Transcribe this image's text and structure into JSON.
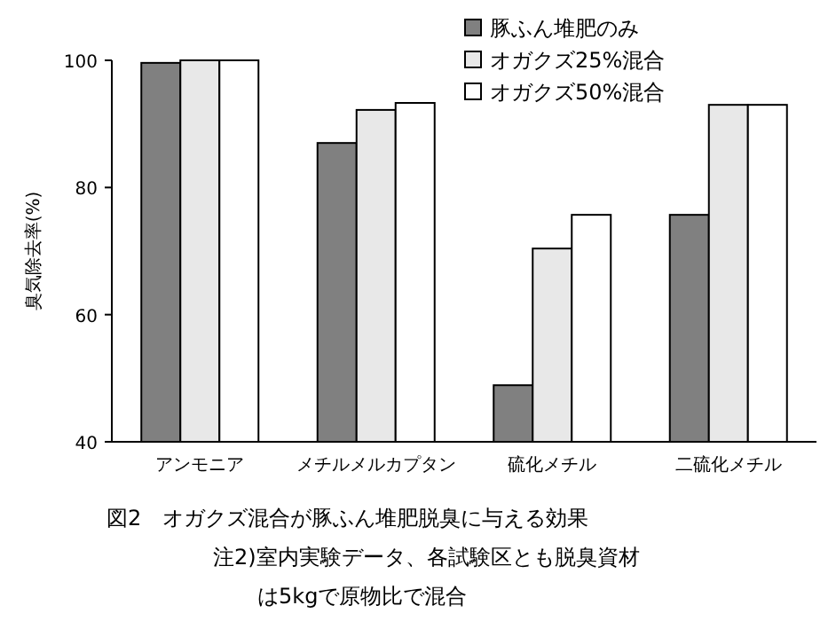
{
  "chart_data": {
    "type": "bar",
    "ylabel": "臭気除去率(%)",
    "title": "図2　オガクズ混合が豚ふん堆肥脱臭に与える効果",
    "annotations": [
      "注2)室内実験データ、各試験区とも脱臭資材",
      "は5kgで原物比で混合"
    ],
    "categories": [
      "アンモニア",
      "メチルメルカプタン",
      "硫化メチル",
      "二硫化メチル"
    ],
    "series": [
      {
        "name": "豚ふん堆肥のみ",
        "color": "#808080",
        "values": [
          99.6,
          87.0,
          48.9,
          75.7
        ]
      },
      {
        "name": "オガクズ25%混合",
        "color": "#e8e8e8",
        "values": [
          100,
          92.2,
          70.4,
          93.0
        ]
      },
      {
        "name": "オガクズ50%混合",
        "color": "#ffffff",
        "values": [
          100,
          93.3,
          75.7,
          93.0
        ]
      }
    ],
    "ylim": [
      40,
      100
    ],
    "yticks": [
      40,
      60,
      80,
      100
    ],
    "legend": "top right",
    "grid": false
  }
}
